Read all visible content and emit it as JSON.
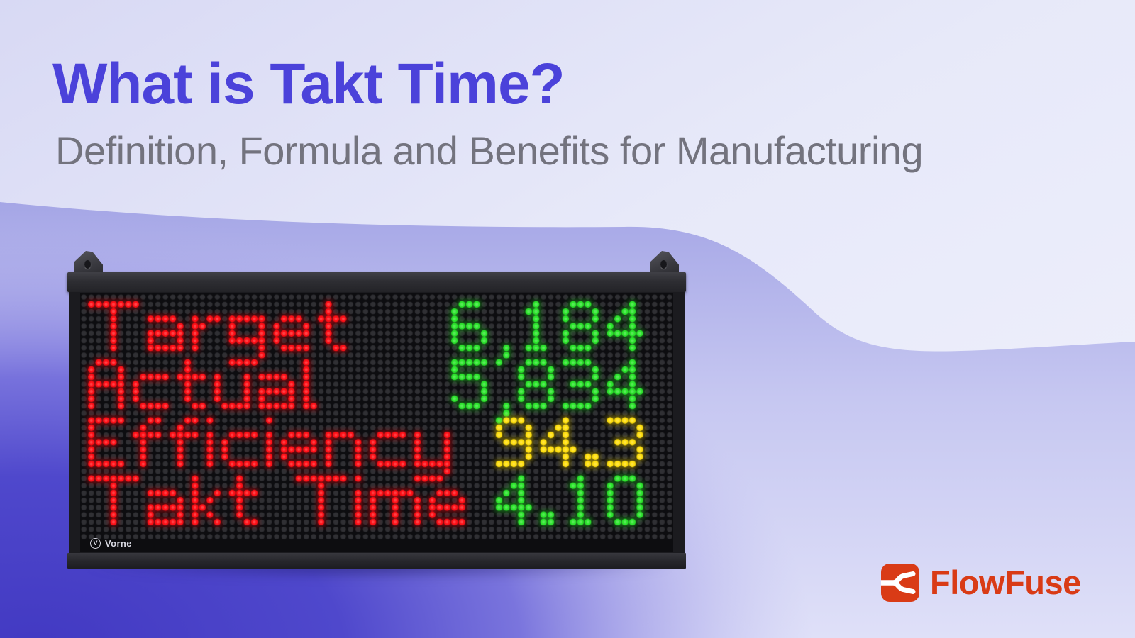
{
  "header": {
    "title": "What is Takt Time?",
    "subtitle": "Definition, Formula and Benefits for Manufacturing"
  },
  "led_board": {
    "brand": "Vorne",
    "rows": [
      {
        "label": "Target",
        "value": "6,184",
        "label_color": "#ff1118",
        "value_color": "#2ee52e"
      },
      {
        "label": "Actual",
        "value": "5,834",
        "label_color": "#ff1118",
        "value_color": "#2ee52e"
      },
      {
        "label": "Efficiency",
        "value": "94.3",
        "label_color": "#ff1118",
        "value_color": "#ffdf10"
      },
      {
        "label": "Takt Time",
        "value": "4.10",
        "label_color": "#ff1118",
        "value_color": "#2ee52e"
      }
    ],
    "unlit_dot_color": "#303034",
    "panel_color": "#0d0d10"
  },
  "footer": {
    "brand": "FlowFuse",
    "brand_color": "#d93b16"
  },
  "icons": {
    "brand_mark": "fork-left-icon",
    "vorne_badge": "v-circle-icon"
  },
  "colors": {
    "title_purple": "#4b42da",
    "subtitle_gray": "#73737e",
    "bg_light": "#eef0fb",
    "bg_lavender": "#aaabe8",
    "bg_deep_blue": "#4239c2"
  }
}
